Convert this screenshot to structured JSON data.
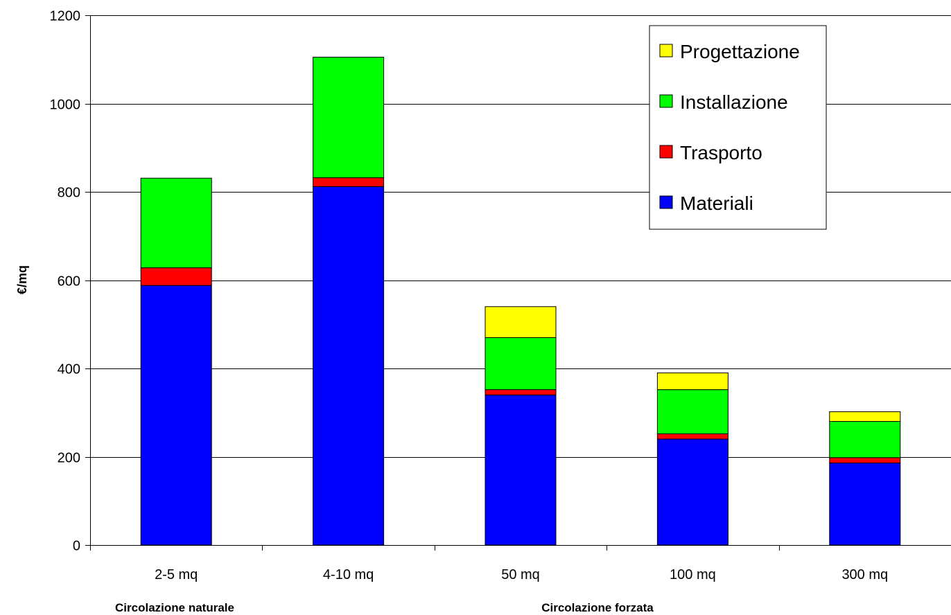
{
  "chart_data": {
    "type": "bar",
    "stacked": true,
    "categories": [
      "2-5 mq",
      "4-10 mq",
      "50 mq",
      "100 mq",
      "300 mq"
    ],
    "series": [
      {
        "name": "Materiali",
        "color": "#0000FF",
        "values": [
          588,
          812,
          340,
          240,
          186
        ]
      },
      {
        "name": "Trasporto",
        "color": "#FF0000",
        "values": [
          40,
          20,
          12,
          12,
          12
        ]
      },
      {
        "name": "Installazione",
        "color": "#00FF00",
        "values": [
          203,
          273,
          118,
          100,
          82
        ]
      },
      {
        "name": "Progettazione",
        "color": "#FFFF00",
        "values": [
          0,
          0,
          70,
          38,
          22
        ]
      }
    ],
    "ylabel": "€/mq",
    "ylim": [
      0,
      1200
    ],
    "yticks": [
      0,
      200,
      400,
      600,
      800,
      1000,
      1200
    ],
    "grid": true,
    "legend_position": "top-right",
    "legend_order": [
      "Progettazione",
      "Installazione",
      "Trasporto",
      "Materiali"
    ],
    "group_labels": [
      {
        "text": "Circolazione naturale",
        "categories": [
          "2-5 mq",
          "4-10 mq"
        ]
      },
      {
        "text": "Circolazione forzata",
        "categories": [
          "50 mq",
          "100 mq",
          "300 mq"
        ]
      }
    ]
  }
}
